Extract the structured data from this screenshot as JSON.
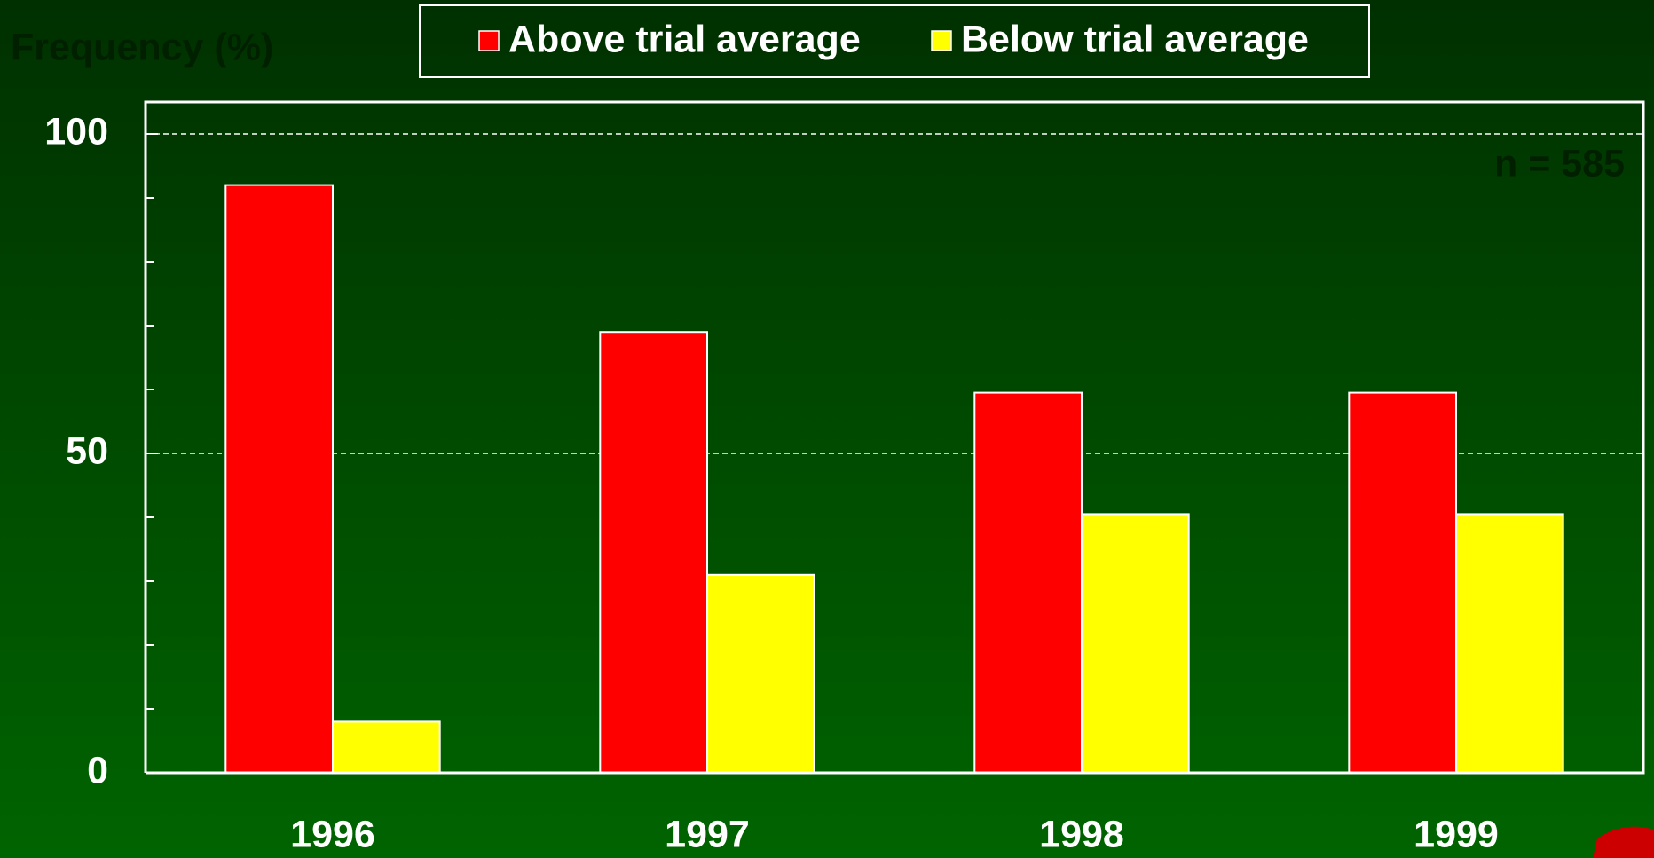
{
  "chart_data": {
    "type": "bar",
    "title": "Frequency (%)",
    "annotation": "n = 585",
    "categories": [
      "1996",
      "1997",
      "1998",
      "1999"
    ],
    "series": [
      {
        "name": "Above trial average",
        "color": "#ff0000",
        "values": [
          92,
          69,
          59.5,
          59.5
        ]
      },
      {
        "name": "Below trial average",
        "color": "#ffff00",
        "values": [
          8,
          31,
          40.5,
          40.5
        ]
      }
    ],
    "ylim": [
      0,
      105
    ],
    "yticks": [
      0,
      50,
      100
    ],
    "minor_yticks": [
      10,
      20,
      30,
      40,
      60,
      70,
      80,
      90
    ],
    "grid": true,
    "legend": "top"
  }
}
